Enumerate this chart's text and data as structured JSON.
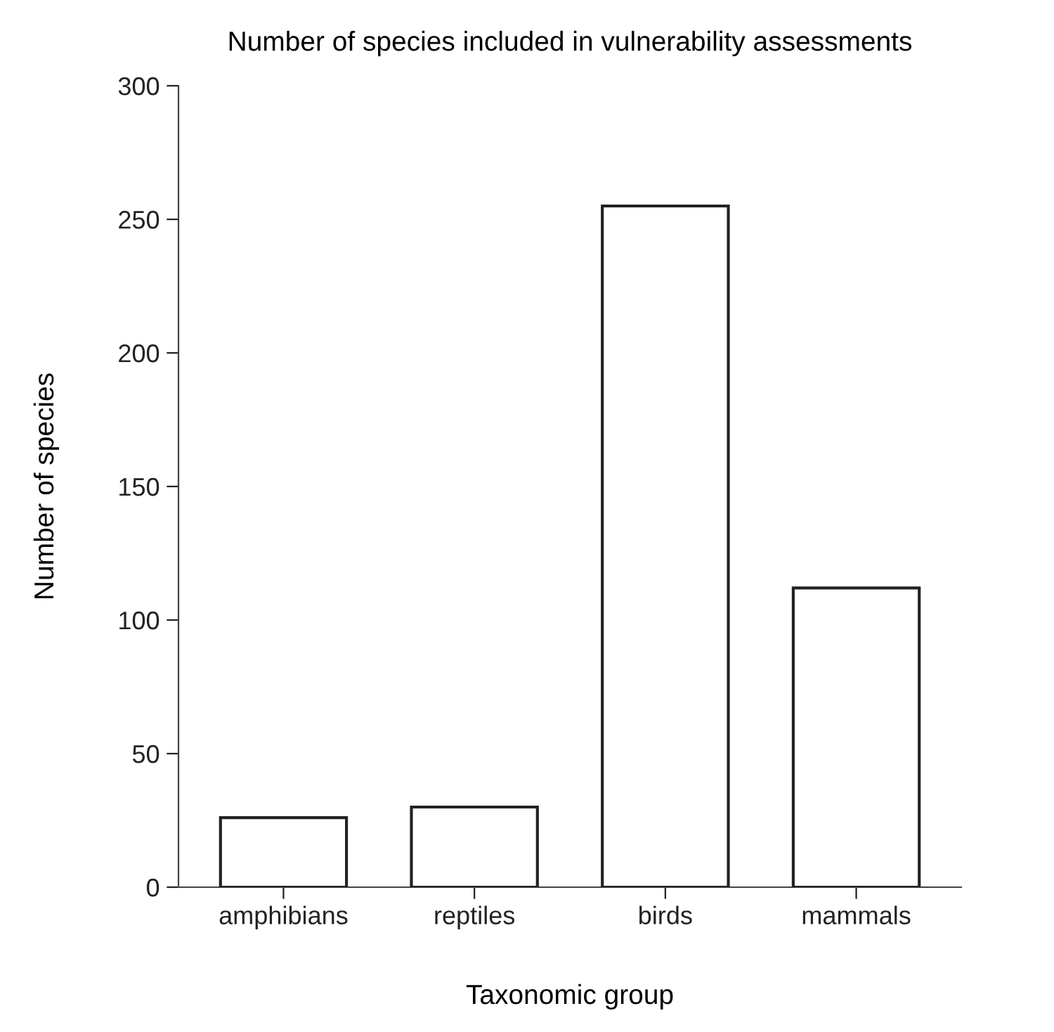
{
  "chart_data": {
    "type": "bar",
    "title": "Number of species included in vulnerability assessments",
    "xlabel": "Taxonomic group",
    "ylabel": "Number of species",
    "categories": [
      "amphibians",
      "reptiles",
      "birds",
      "mammals"
    ],
    "values": [
      26,
      30,
      255,
      112
    ],
    "color": "#ffffff",
    "ylim": [
      0,
      300
    ],
    "yticks": [
      0,
      50,
      100,
      150,
      200,
      250,
      300
    ],
    "grid": false,
    "legend": false
  }
}
